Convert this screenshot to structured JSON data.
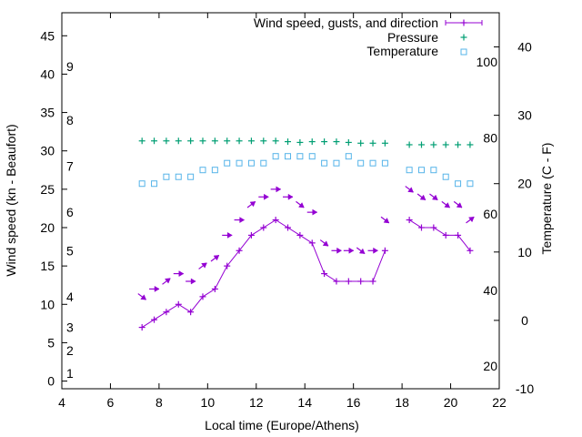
{
  "chart_data": {
    "type": "line",
    "title": "",
    "xlabel": "Local time (Europe/Athens)",
    "ylabel": "Wind speed (kn - Beaufort)",
    "y2label": "Temperature (C - F)",
    "xlim": [
      4,
      22
    ],
    "ylim": [
      -1,
      48
    ],
    "y2lim": [
      -10,
      45
    ],
    "x_ticks": [
      "4",
      "6",
      "8",
      "10",
      "12",
      "14",
      "16",
      "18",
      "20",
      "22"
    ],
    "y_ticks": [
      "0",
      "5",
      "10",
      "15",
      "20",
      "25",
      "30",
      "35",
      "40",
      "45"
    ],
    "y2_ticks": [
      "-10",
      "0",
      "10",
      "20",
      "30",
      "40"
    ],
    "beaufort_labels": [
      {
        "label": "1",
        "kn": 1
      },
      {
        "label": "2",
        "kn": 4
      },
      {
        "label": "3",
        "kn": 7
      },
      {
        "label": "4",
        "kn": 11
      },
      {
        "label": "5",
        "kn": 17
      },
      {
        "label": "6",
        "kn": 22
      },
      {
        "label": "7",
        "kn": 28
      },
      {
        "label": "8",
        "kn": 34
      },
      {
        "label": "9",
        "kn": 41
      }
    ],
    "fahrenheit_labels": [
      {
        "label": "20",
        "c": -6.7
      },
      {
        "label": "40",
        "c": 4.4
      },
      {
        "label": "60",
        "c": 15.6
      },
      {
        "label": "80",
        "c": 26.7
      },
      {
        "label": "100",
        "c": 37.8
      }
    ],
    "legend": {
      "placement": "top-right",
      "wind": "Wind speed, gusts, and direction",
      "pressure": "Pressure",
      "temperature": "Temperature"
    },
    "colors": {
      "wind": "#9400d3",
      "pressure": "#009e73",
      "temperature": "#56b4e9"
    },
    "wind_segments": [
      [
        [
          7.3,
          7
        ],
        [
          7.8,
          8
        ],
        [
          8.3,
          9
        ],
        [
          8.8,
          10
        ],
        [
          9.3,
          9
        ],
        [
          9.8,
          11
        ],
        [
          10.3,
          12
        ],
        [
          10.8,
          15
        ],
        [
          11.3,
          17
        ],
        [
          11.8,
          19
        ],
        [
          12.3,
          20
        ],
        [
          12.8,
          21
        ],
        [
          13.3,
          20
        ],
        [
          13.8,
          19
        ],
        [
          14.3,
          18
        ],
        [
          14.8,
          14
        ],
        [
          15.3,
          13
        ],
        [
          15.8,
          13
        ],
        [
          16.3,
          13
        ],
        [
          16.8,
          13
        ],
        [
          17.3,
          17
        ]
      ],
      [
        [
          18.3,
          21
        ],
        [
          18.8,
          20
        ],
        [
          19.3,
          20
        ],
        [
          19.8,
          19
        ],
        [
          20.3,
          19
        ],
        [
          20.8,
          17
        ]
      ]
    ],
    "gust_arrows": [
      {
        "x": 7.3,
        "kn": 11,
        "dir": "se"
      },
      {
        "x": 7.8,
        "kn": 12,
        "dir": "e"
      },
      {
        "x": 8.3,
        "kn": 13,
        "dir": "ne"
      },
      {
        "x": 8.8,
        "kn": 14,
        "dir": "e"
      },
      {
        "x": 9.3,
        "kn": 13,
        "dir": "e"
      },
      {
        "x": 9.8,
        "kn": 15,
        "dir": "ne"
      },
      {
        "x": 10.3,
        "kn": 16,
        "dir": "ne"
      },
      {
        "x": 10.8,
        "kn": 19,
        "dir": "e"
      },
      {
        "x": 11.3,
        "kn": 21,
        "dir": "e"
      },
      {
        "x": 11.8,
        "kn": 23,
        "dir": "ne"
      },
      {
        "x": 12.3,
        "kn": 24,
        "dir": "e"
      },
      {
        "x": 12.8,
        "kn": 25,
        "dir": "e"
      },
      {
        "x": 13.3,
        "kn": 24,
        "dir": "e"
      },
      {
        "x": 13.8,
        "kn": 23,
        "dir": "se"
      },
      {
        "x": 14.3,
        "kn": 22,
        "dir": "e"
      },
      {
        "x": 14.8,
        "kn": 18,
        "dir": "se"
      },
      {
        "x": 15.3,
        "kn": 17,
        "dir": "e"
      },
      {
        "x": 15.8,
        "kn": 17,
        "dir": "e"
      },
      {
        "x": 16.3,
        "kn": 17,
        "dir": "se"
      },
      {
        "x": 16.8,
        "kn": 17,
        "dir": "e"
      },
      {
        "x": 17.3,
        "kn": 21,
        "dir": "se"
      },
      {
        "x": 18.3,
        "kn": 25,
        "dir": "se"
      },
      {
        "x": 18.8,
        "kn": 24,
        "dir": "se"
      },
      {
        "x": 19.3,
        "kn": 24,
        "dir": "se"
      },
      {
        "x": 19.8,
        "kn": 23,
        "dir": "se"
      },
      {
        "x": 20.3,
        "kn": 23,
        "dir": "se"
      },
      {
        "x": 20.8,
        "kn": 21,
        "dir": "ne"
      }
    ],
    "pressure_points": [
      [
        7.3,
        31.3
      ],
      [
        7.8,
        31.3
      ],
      [
        8.3,
        31.3
      ],
      [
        8.8,
        31.3
      ],
      [
        9.3,
        31.3
      ],
      [
        9.8,
        31.3
      ],
      [
        10.3,
        31.3
      ],
      [
        10.8,
        31.3
      ],
      [
        11.3,
        31.3
      ],
      [
        11.8,
        31.3
      ],
      [
        12.3,
        31.3
      ],
      [
        12.8,
        31.3
      ],
      [
        13.3,
        31.2
      ],
      [
        13.8,
        31.1
      ],
      [
        14.3,
        31.2
      ],
      [
        14.8,
        31.2
      ],
      [
        15.3,
        31.2
      ],
      [
        15.8,
        31.1
      ],
      [
        16.3,
        31.0
      ],
      [
        16.8,
        31.0
      ],
      [
        17.3,
        31.0
      ],
      [
        18.3,
        30.8
      ],
      [
        18.8,
        30.8
      ],
      [
        19.3,
        30.8
      ],
      [
        19.8,
        30.8
      ],
      [
        20.3,
        30.8
      ],
      [
        20.8,
        30.8
      ]
    ],
    "temperature_points": [
      [
        7.3,
        20
      ],
      [
        7.8,
        20
      ],
      [
        8.3,
        21
      ],
      [
        8.8,
        21
      ],
      [
        9.3,
        21
      ],
      [
        9.8,
        22
      ],
      [
        10.3,
        22
      ],
      [
        10.8,
        23
      ],
      [
        11.3,
        23
      ],
      [
        11.8,
        23
      ],
      [
        12.3,
        23
      ],
      [
        12.8,
        24
      ],
      [
        13.3,
        24
      ],
      [
        13.8,
        24
      ],
      [
        14.3,
        24
      ],
      [
        14.8,
        23
      ],
      [
        15.3,
        23
      ],
      [
        15.8,
        24
      ],
      [
        16.3,
        23
      ],
      [
        16.8,
        23
      ],
      [
        17.3,
        23
      ],
      [
        18.3,
        22
      ],
      [
        18.8,
        22
      ],
      [
        19.3,
        22
      ],
      [
        19.8,
        21
      ],
      [
        20.3,
        20
      ],
      [
        20.8,
        20
      ]
    ]
  }
}
